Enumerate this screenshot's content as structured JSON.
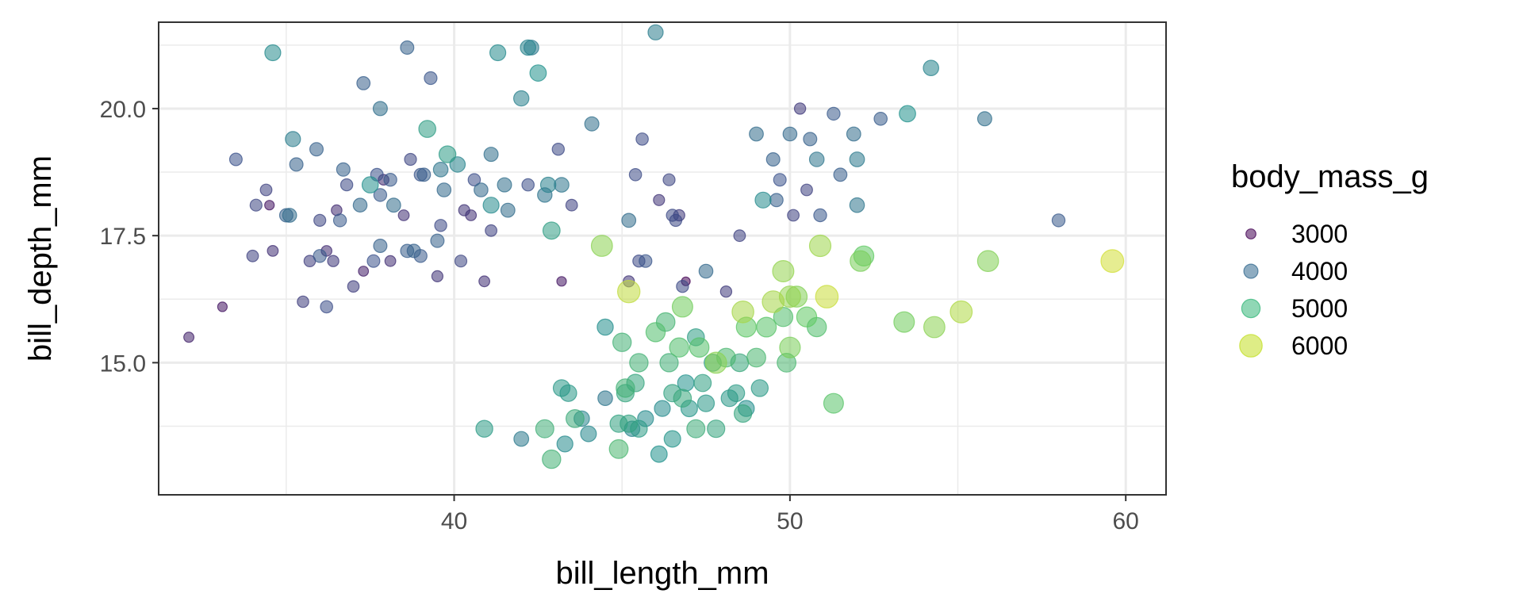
{
  "chart_data": {
    "type": "scatter",
    "xlabel": "bill_length_mm",
    "ylabel": "bill_depth_mm",
    "xlim": [
      31.2,
      61.2
    ],
    "ylim": [
      12.4,
      21.7
    ],
    "x_ticks": [
      40,
      50,
      60
    ],
    "x_tick_labels": [
      "40",
      "50",
      "60"
    ],
    "y_ticks": [
      15.0,
      17.5,
      20.0
    ],
    "y_tick_labels": [
      "15.0",
      "17.5",
      "20.0"
    ],
    "grid": true,
    "size_scale": "body_mass_g mapped to point area and viridis color",
    "legend": {
      "title": "body_mass_g",
      "position": "right",
      "entries": [
        {
          "label": "3000",
          "value": 3000,
          "color": "#440154"
        },
        {
          "label": "4000",
          "value": 4000,
          "color": "#31688e"
        },
        {
          "label": "5000",
          "value": 5000,
          "color": "#35b779"
        },
        {
          "label": "6000",
          "value": 6000,
          "color": "#c2df23"
        }
      ]
    },
    "points": [
      [
        32.1,
        15.5,
        3050
      ],
      [
        33.1,
        16.1,
        2900
      ],
      [
        33.5,
        19.0,
        3600
      ],
      [
        34.0,
        17.1,
        3400
      ],
      [
        34.1,
        18.1,
        3450
      ],
      [
        34.4,
        18.4,
        3400
      ],
      [
        34.5,
        18.1,
        2900
      ],
      [
        34.6,
        17.2,
        3200
      ],
      [
        34.6,
        21.1,
        4400
      ],
      [
        35.0,
        17.9,
        3800
      ],
      [
        35.1,
        17.9,
        3950
      ],
      [
        35.2,
        19.4,
        4200
      ],
      [
        35.3,
        18.9,
        3800
      ],
      [
        35.5,
        16.2,
        3350
      ],
      [
        35.7,
        17.0,
        3350
      ],
      [
        35.9,
        19.2,
        3800
      ],
      [
        36.0,
        17.1,
        3700
      ],
      [
        36.0,
        17.8,
        3450
      ],
      [
        36.2,
        16.1,
        3550
      ],
      [
        36.2,
        17.2,
        3150
      ],
      [
        36.4,
        17.0,
        3300
      ],
      [
        36.5,
        18.0,
        3150
      ],
      [
        36.6,
        17.8,
        3700
      ],
      [
        36.7,
        18.8,
        3800
      ],
      [
        36.8,
        18.5,
        3500
      ],
      [
        37.0,
        16.5,
        3350
      ],
      [
        37.2,
        18.1,
        3900
      ],
      [
        37.3,
        16.8,
        3000
      ],
      [
        37.3,
        20.5,
        3775
      ],
      [
        37.5,
        18.5,
        4475
      ],
      [
        37.6,
        17.0,
        3600
      ],
      [
        37.7,
        18.7,
        3600
      ],
      [
        37.8,
        17.3,
        3800
      ],
      [
        37.8,
        18.3,
        3700
      ],
      [
        37.8,
        20.0,
        4000
      ],
      [
        37.9,
        18.6,
        3150
      ],
      [
        38.1,
        17.0,
        3175
      ],
      [
        38.1,
        18.6,
        3700
      ],
      [
        38.2,
        18.1,
        3950
      ],
      [
        38.5,
        17.9,
        3200
      ],
      [
        38.6,
        17.2,
        3750
      ],
      [
        38.6,
        21.2,
        3800
      ],
      [
        38.7,
        19.0,
        3450
      ],
      [
        38.8,
        17.2,
        3800
      ],
      [
        39.0,
        17.1,
        3700
      ],
      [
        39.0,
        18.7,
        3650
      ],
      [
        39.1,
        18.7,
        3750
      ],
      [
        39.2,
        19.6,
        4675
      ],
      [
        39.3,
        20.6,
        3650
      ],
      [
        39.5,
        17.4,
        3800
      ],
      [
        39.5,
        16.7,
        3250
      ],
      [
        39.6,
        17.7,
        3500
      ],
      [
        39.6,
        18.8,
        4100
      ],
      [
        39.7,
        18.4,
        3900
      ],
      [
        39.8,
        19.1,
        4650
      ],
      [
        40.1,
        18.9,
        4300
      ],
      [
        40.2,
        17.0,
        3450
      ],
      [
        40.3,
        18.0,
        3250
      ],
      [
        40.5,
        17.9,
        3200
      ],
      [
        40.6,
        18.6,
        3550
      ],
      [
        40.8,
        18.4,
        3900
      ],
      [
        40.9,
        16.6,
        3200
      ],
      [
        41.1,
        17.6,
        3400
      ],
      [
        41.1,
        18.1,
        4400
      ],
      [
        41.1,
        19.1,
        4000
      ],
      [
        41.3,
        21.1,
        4400
      ],
      [
        41.5,
        18.5,
        4000
      ],
      [
        41.6,
        18.0,
        3950
      ],
      [
        42.0,
        20.2,
        4250
      ],
      [
        42.2,
        18.5,
        3550
      ],
      [
        42.2,
        21.2,
        4300
      ],
      [
        42.3,
        21.2,
        4150
      ],
      [
        42.5,
        20.7,
        4500
      ],
      [
        42.7,
        18.3,
        4075
      ],
      [
        42.8,
        18.5,
        4250
      ],
      [
        42.9,
        17.6,
        4700
      ],
      [
        43.1,
        19.2,
        3500
      ],
      [
        43.2,
        18.5,
        4100
      ],
      [
        43.2,
        16.6,
        2900
      ],
      [
        43.5,
        18.1,
        3400
      ],
      [
        44.1,
        19.7,
        4000
      ],
      [
        45.2,
        16.6,
        3250
      ],
      [
        45.2,
        17.8,
        3950
      ],
      [
        45.4,
        18.7,
        3525
      ],
      [
        45.5,
        17.0,
        3500
      ],
      [
        45.6,
        19.4,
        3525
      ],
      [
        45.7,
        17.0,
        3650
      ],
      [
        46.0,
        21.5,
        4200
      ],
      [
        46.1,
        18.2,
        3250
      ],
      [
        46.4,
        18.6,
        3450
      ],
      [
        46.5,
        17.9,
        3500
      ],
      [
        46.6,
        17.8,
        3500
      ],
      [
        46.7,
        17.9,
        3300
      ],
      [
        46.8,
        16.5,
        3500
      ],
      [
        46.9,
        16.6,
        2700
      ],
      [
        47.5,
        16.8,
        3900
      ],
      [
        48.1,
        16.4,
        3325
      ],
      [
        48.5,
        17.5,
        3400
      ],
      [
        49.0,
        19.5,
        3950
      ],
      [
        49.2,
        18.2,
        4400
      ],
      [
        49.5,
        19.0,
        3800
      ],
      [
        49.6,
        18.2,
        3775
      ],
      [
        49.7,
        18.6,
        3600
      ],
      [
        50.0,
        19.5,
        3900
      ],
      [
        50.1,
        17.9,
        3400
      ],
      [
        50.3,
        20.0,
        3300
      ],
      [
        50.5,
        18.4,
        3400
      ],
      [
        50.6,
        19.4,
        3800
      ],
      [
        50.8,
        19.0,
        4100
      ],
      [
        50.9,
        17.9,
        3675
      ],
      [
        51.3,
        19.9,
        3700
      ],
      [
        51.5,
        18.7,
        3750
      ],
      [
        51.9,
        19.5,
        3950
      ],
      [
        52.0,
        18.1,
        4100
      ],
      [
        52.0,
        19.0,
        4150
      ],
      [
        52.7,
        19.8,
        3725
      ],
      [
        53.5,
        19.9,
        4500
      ],
      [
        54.2,
        20.8,
        4300
      ],
      [
        55.8,
        19.8,
        4000
      ],
      [
        58.0,
        17.8,
        3700
      ],
      [
        40.9,
        13.7,
        4650
      ],
      [
        42.0,
        13.5,
        4150
      ],
      [
        42.7,
        13.7,
        4950
      ],
      [
        42.9,
        13.1,
        5000
      ],
      [
        43.2,
        14.5,
        4600
      ],
      [
        43.3,
        13.4,
        4400
      ],
      [
        43.4,
        14.4,
        4600
      ],
      [
        43.6,
        13.9,
        4900
      ],
      [
        44.0,
        13.6,
        4350
      ],
      [
        44.5,
        14.3,
        4100
      ],
      [
        44.9,
        13.3,
        5100
      ],
      [
        45.1,
        14.5,
        5000
      ],
      [
        45.2,
        13.8,
        4750
      ],
      [
        45.3,
        13.7,
        4300
      ],
      [
        45.5,
        13.7,
        4650
      ],
      [
        45.7,
        13.9,
        4400
      ],
      [
        46.1,
        13.2,
        4500
      ],
      [
        46.2,
        14.1,
        4400
      ],
      [
        46.4,
        15.0,
        4975
      ],
      [
        46.5,
        13.5,
        4550
      ],
      [
        46.8,
        14.3,
        4850
      ],
      [
        47.2,
        13.7,
        4925
      ],
      [
        47.5,
        14.2,
        4600
      ],
      [
        47.7,
        15.0,
        4725
      ],
      [
        48.2,
        14.3,
        4600
      ],
      [
        48.4,
        14.4,
        4650
      ],
      [
        48.7,
        14.1,
        4450
      ],
      [
        49.1,
        14.5,
        4625
      ],
      [
        49.5,
        16.2,
        5800
      ],
      [
        50.0,
        15.3,
        5550
      ],
      [
        45.0,
        15.4,
        5000
      ],
      [
        45.5,
        15.0,
        5000
      ],
      [
        46.0,
        15.6,
        5200
      ],
      [
        46.3,
        15.8,
        5050
      ],
      [
        46.7,
        15.3,
        5200
      ],
      [
        47.3,
        15.3,
        5250
      ],
      [
        47.8,
        15.0,
        5650
      ],
      [
        48.1,
        15.1,
        5100
      ],
      [
        48.5,
        15.0,
        4850
      ],
      [
        48.7,
        15.7,
        5350
      ],
      [
        49.0,
        15.1,
        5100
      ],
      [
        49.3,
        15.7,
        5300
      ],
      [
        49.8,
        15.9,
        5200
      ],
      [
        50.2,
        16.3,
        5600
      ],
      [
        50.5,
        15.9,
        5400
      ],
      [
        51.1,
        16.3,
        6000
      ],
      [
        44.4,
        17.3,
        5650
      ],
      [
        45.2,
        16.4,
        5950
      ],
      [
        45.4,
        14.6,
        4800
      ],
      [
        46.8,
        16.1,
        5500
      ],
      [
        47.2,
        15.5,
        4675
      ],
      [
        47.4,
        14.6,
        4725
      ],
      [
        48.6,
        16.0,
        5800
      ],
      [
        49.8,
        16.8,
        5700
      ],
      [
        50.0,
        16.3,
        5700
      ],
      [
        50.8,
        15.7,
        5200
      ],
      [
        50.9,
        17.3,
        5750
      ],
      [
        51.3,
        14.2,
        5300
      ],
      [
        52.1,
        17.0,
        5550
      ],
      [
        52.2,
        17.1,
        5400
      ],
      [
        53.4,
        15.8,
        5500
      ],
      [
        54.3,
        15.7,
        5650
      ],
      [
        55.1,
        16.0,
        5850
      ],
      [
        55.9,
        17.0,
        5600
      ],
      [
        59.6,
        17.0,
        6050
      ],
      [
        45.1,
        14.4,
        4800
      ],
      [
        44.9,
        13.8,
        4750
      ],
      [
        46.5,
        14.4,
        4750
      ],
      [
        47.0,
        14.1,
        4575
      ],
      [
        47.8,
        13.7,
        4800
      ],
      [
        43.8,
        13.9,
        4300
      ],
      [
        44.5,
        15.7,
        4450
      ],
      [
        48.6,
        14.0,
        4800
      ],
      [
        49.9,
        15.0,
        5100
      ],
      [
        46.9,
        14.6,
        4500
      ]
    ]
  }
}
